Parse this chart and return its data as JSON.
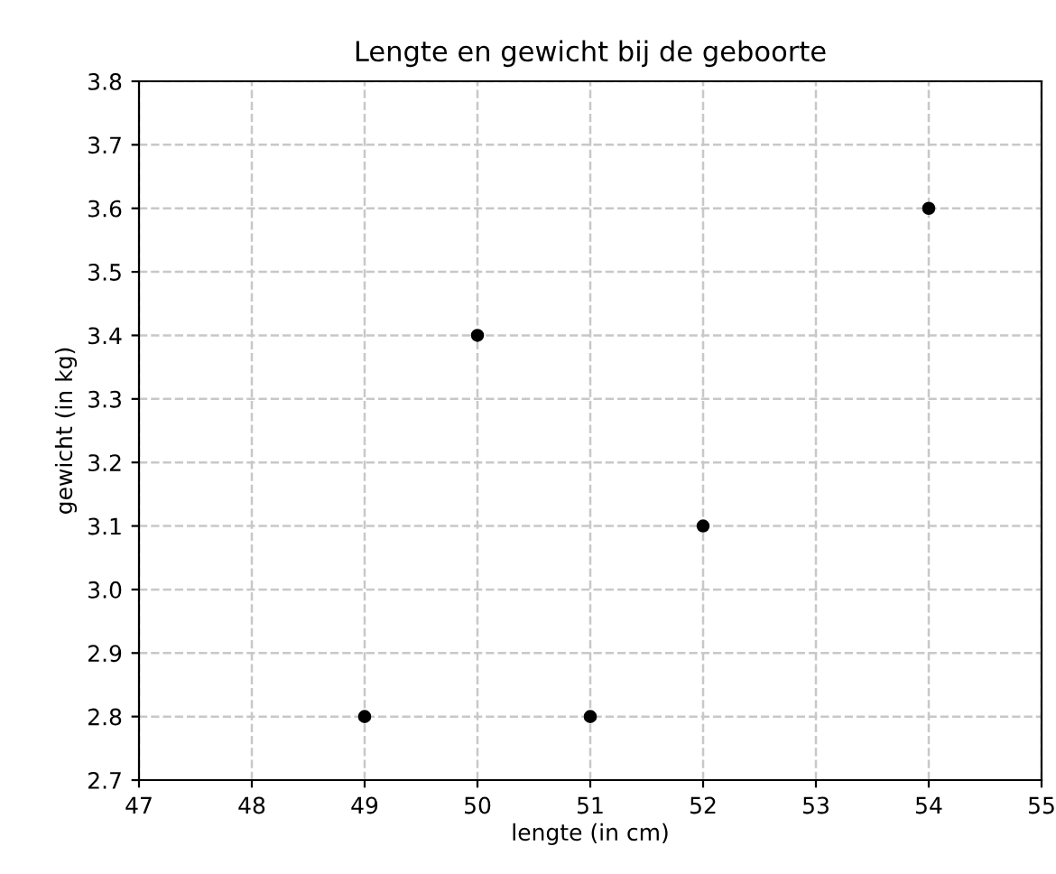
{
  "chart_data": {
    "type": "scatter",
    "title": "Lengte en gewicht bij de geboorte",
    "xlabel": "lengte (in cm)",
    "ylabel": "gewicht (in kg)",
    "x": [
      49,
      50,
      51,
      52,
      54
    ],
    "series": [
      {
        "color": "#000000",
        "values": [
          2.8,
          3.4,
          2.8,
          3.1,
          3.6
        ]
      }
    ],
    "xlim": [
      47,
      55
    ],
    "xticks": [
      47,
      48,
      49,
      50,
      51,
      52,
      53,
      54,
      55
    ],
    "ylim": [
      2.7,
      3.8
    ],
    "yticks": [
      2.7,
      2.8,
      2.9,
      {
        "value": 3,
        "label": "3.0"
      },
      3.1,
      3.2,
      3.3,
      3.4,
      3.5,
      3.6,
      3.7,
      3.8
    ],
    "grid": true,
    "marker": "circle",
    "line_style": "dashed",
    "legend": false
  }
}
